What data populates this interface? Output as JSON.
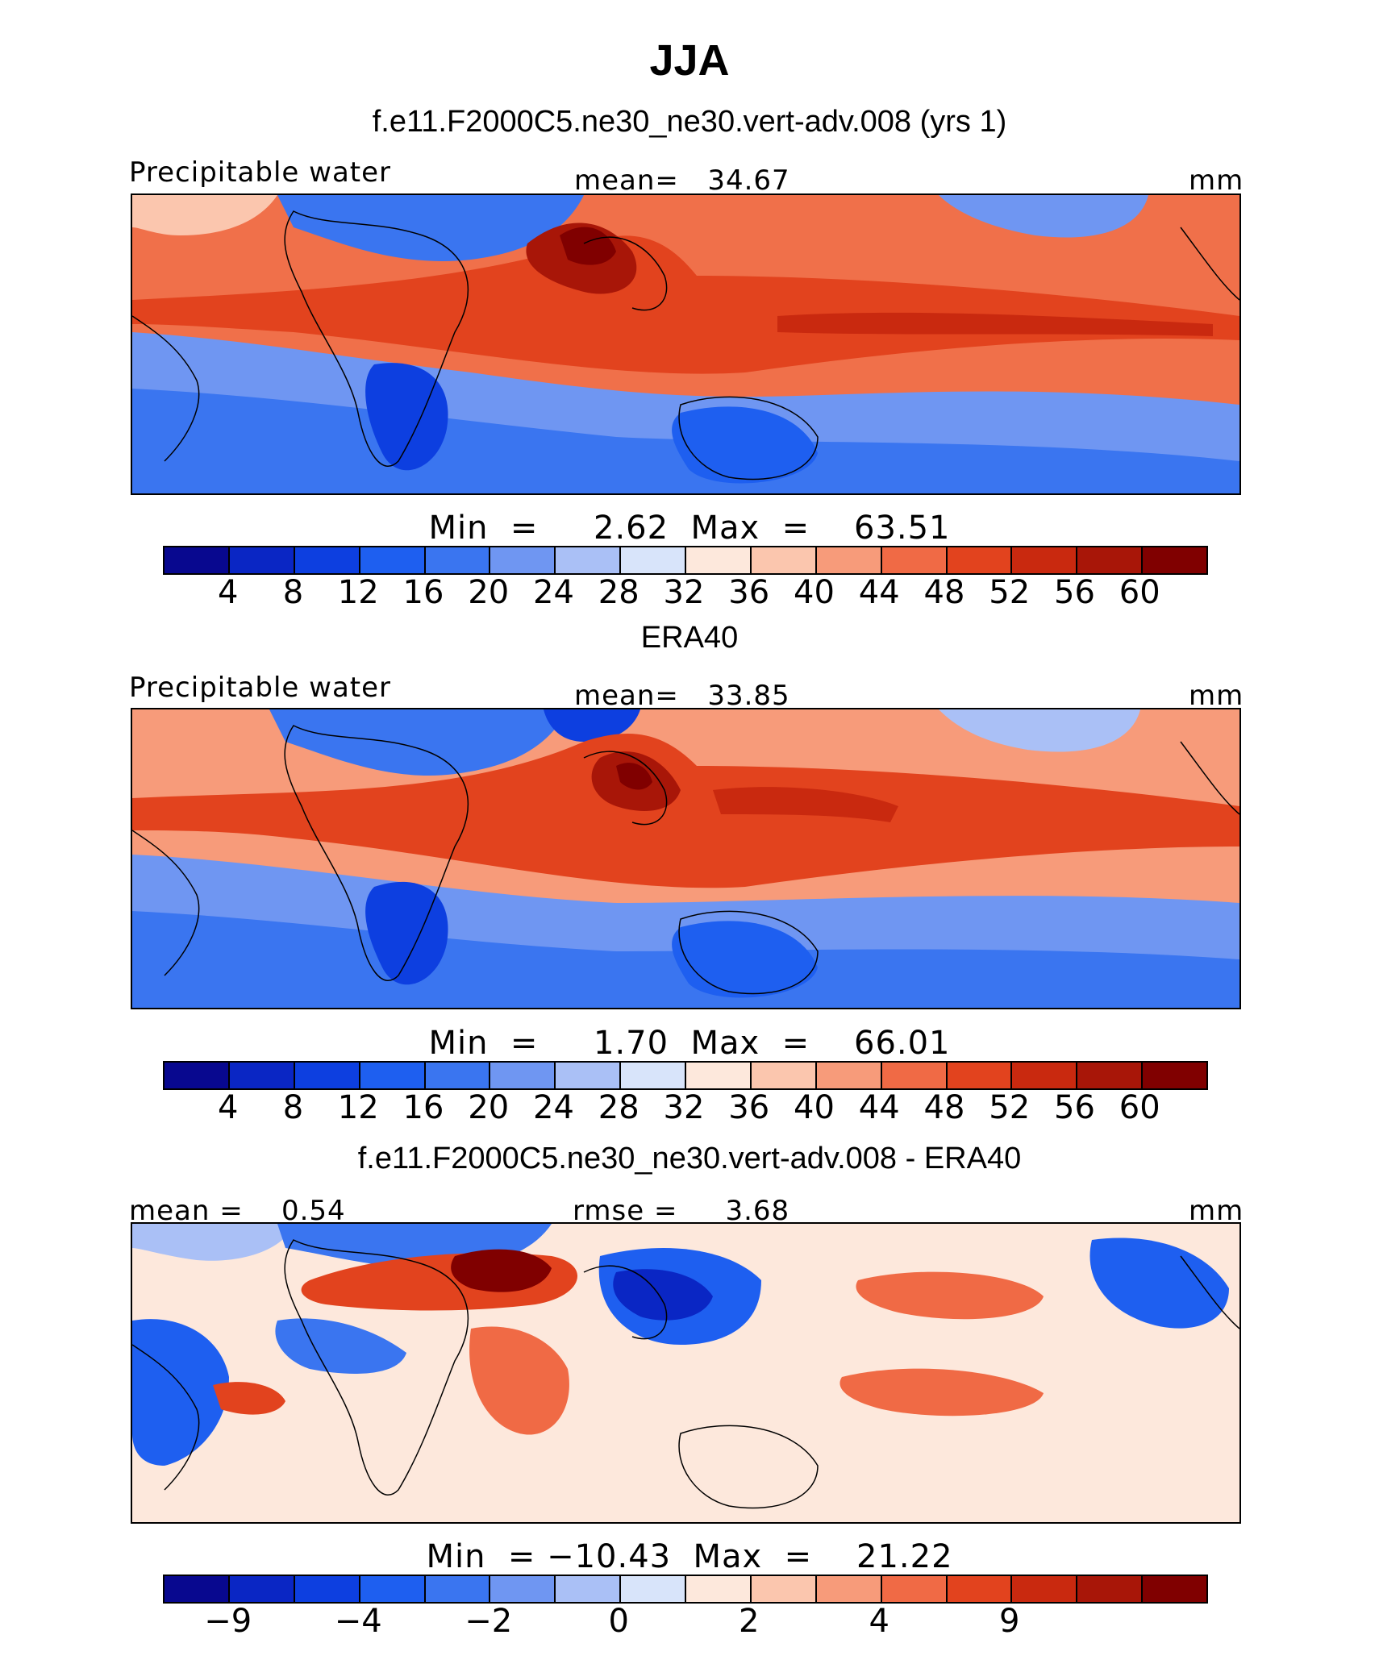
{
  "title": "JJA",
  "units": "mm",
  "colors": [
    "#08088f",
    "#0a26c4",
    "#0d3fe0",
    "#1e5ff0",
    "#3a75f0",
    "#6f96f2",
    "#aac0f6",
    "#d8e4fa",
    "#fde8dc",
    "#fbc6ae",
    "#f79b7a",
    "#f06a45",
    "#e2431e",
    "#c9290f",
    "#a81608",
    "#800000"
  ],
  "panels": [
    {
      "run_title": "f.e11.F2000C5.ne30_ne30.vert-adv.008 (yrs 1)",
      "variable": "Precipitable water",
      "stat1": "mean=   34.67",
      "stat2": "",
      "units": "mm",
      "minmax": "Min  =     2.62  Max  =    63.51",
      "ticks": [
        "4",
        "8",
        "12",
        "16",
        "20",
        "24",
        "28",
        "32",
        "36",
        "40",
        "44",
        "48",
        "52",
        "56",
        "60"
      ]
    },
    {
      "run_title": "ERA40",
      "variable": "Precipitable water",
      "stat1": "mean=   33.85",
      "stat2": "",
      "units": "mm",
      "minmax": "Min  =     1.70  Max  =    66.01",
      "ticks": [
        "4",
        "8",
        "12",
        "16",
        "20",
        "24",
        "28",
        "32",
        "36",
        "40",
        "44",
        "48",
        "52",
        "56",
        "60"
      ]
    },
    {
      "run_title": "f.e11.F2000C5.ne30_ne30.vert-adv.008 - ERA40",
      "variable": "mean =    0.54",
      "stat1": "rmse =     3.68",
      "stat2": "",
      "units": "mm",
      "minmax": "Min  = −10.43  Max  =    21.22",
      "ticks": [
        "−9",
        "",
        "−4",
        "",
        "−2",
        "",
        "0",
        "",
        "2",
        "",
        "4",
        "",
        "9",
        "",
        ""
      ]
    }
  ],
  "chart_data": [
    {
      "type": "heatmap",
      "title": "JJA",
      "subtitle": "f.e11.F2000C5.ne30_ne30.vert-adv.008 (yrs 1)",
      "variable": "Precipitable water",
      "units": "mm",
      "mean": 34.67,
      "min": 2.62,
      "max": 63.51,
      "contour_levels": [
        4,
        8,
        12,
        16,
        20,
        24,
        28,
        32,
        36,
        40,
        44,
        48,
        52,
        56,
        60
      ]
    },
    {
      "type": "heatmap",
      "subtitle": "ERA40",
      "variable": "Precipitable water",
      "units": "mm",
      "mean": 33.85,
      "min": 1.7,
      "max": 66.01,
      "contour_levels": [
        4,
        8,
        12,
        16,
        20,
        24,
        28,
        32,
        36,
        40,
        44,
        48,
        52,
        56,
        60
      ]
    },
    {
      "type": "heatmap",
      "subtitle": "f.e11.F2000C5.ne30_ne30.vert-adv.008 - ERA40",
      "units": "mm",
      "mean": 0.54,
      "rmse": 3.68,
      "min": -10.43,
      "max": 21.22,
      "contour_levels": [
        -9,
        -4,
        -2,
        0,
        2,
        4,
        9
      ]
    }
  ]
}
